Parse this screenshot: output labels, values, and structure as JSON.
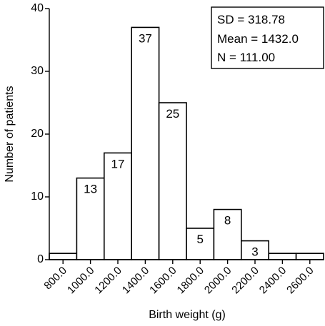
{
  "chart_data": {
    "type": "bar",
    "xlabel": "Birth weight (g)",
    "ylabel": "Number of patients",
    "ylim": [
      0,
      40
    ],
    "yticks": [
      0,
      10,
      20,
      30,
      40
    ],
    "categories": [
      "800.0",
      "1000.0",
      "1200.0",
      "1400.0",
      "1600.0",
      "1800.0",
      "2000.0",
      "2200.0",
      "2400.0",
      "2600.0"
    ],
    "values": [
      1,
      13,
      17,
      37,
      25,
      5,
      8,
      3,
      1,
      1
    ],
    "data_labels": [
      "",
      "13",
      "17",
      "37",
      "25",
      "5",
      "8",
      "3",
      "",
      ""
    ],
    "grid": false,
    "stats": {
      "sd": "SD = 318.78",
      "mean": "Mean = 1432.0",
      "n": "N = 111.00"
    }
  }
}
